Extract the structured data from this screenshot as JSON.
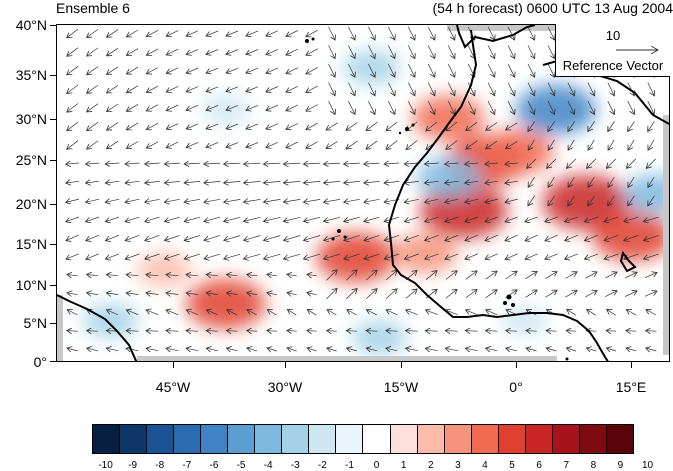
{
  "title_left": "Ensemble 6",
  "title_right": "(54 h forecast) 0600 UTC 13 Aug 2004",
  "lat_labels": [
    "40°N",
    "35°N",
    "30°N",
    "25°N",
    "20°N",
    "15°N",
    "10°N",
    "5°N",
    "0°"
  ],
  "lon_labels": [
    "45°W",
    "30°W",
    "15°W",
    "0°",
    "15°E"
  ],
  "reference_vector": {
    "magnitude": "10",
    "label": "Reference Vector"
  },
  "colorbar": {
    "labels": [
      "-10",
      "-9",
      "-8",
      "-7",
      "-6",
      "-5",
      "-4",
      "-3",
      "-2",
      "-1",
      "0",
      "1",
      "2",
      "3",
      "4",
      "5",
      "6",
      "7",
      "8",
      "9",
      "10"
    ],
    "colors": [
      "#08203f",
      "#0c3766",
      "#1a5294",
      "#2b6cb0",
      "#3f84c4",
      "#5b9ed2",
      "#7db8df",
      "#a3d1e8",
      "#cde6f2",
      "#eaf5fb",
      "#ffffff",
      "#ffffff",
      "#fde0dc",
      "#fbbcaa",
      "#f7937a",
      "#f06a52",
      "#e0402f",
      "#c92525",
      "#a8121a",
      "#7f0a12",
      "#5a0409"
    ]
  },
  "map": {
    "extent": {
      "lon_min": -60,
      "lon_max": 20,
      "lat_min": 0,
      "lat_max": 40
    },
    "anomalies": [
      {
        "lon": -4,
        "lat": 24,
        "value": 6
      },
      {
        "lon": -7,
        "lat": 18,
        "value": 7
      },
      {
        "lon": -9,
        "lat": 29,
        "value": 5
      },
      {
        "lon": 9,
        "lat": 19,
        "value": 7
      },
      {
        "lon": 15,
        "lat": 15,
        "value": 6
      },
      {
        "lon": 0,
        "lat": 25,
        "value": 5
      },
      {
        "lon": -21,
        "lat": 12.5,
        "value": 6
      },
      {
        "lon": -38,
        "lat": 7,
        "value": 6
      },
      {
        "lon": -12,
        "lat": 13,
        "value": 4
      },
      {
        "lon": -46,
        "lat": 11,
        "value": 3
      },
      {
        "lon": 5,
        "lat": 30,
        "value": -6
      },
      {
        "lon": -9,
        "lat": 22,
        "value": -4
      },
      {
        "lon": 18,
        "lat": 20,
        "value": -4
      },
      {
        "lon": -19,
        "lat": 35,
        "value": -3
      },
      {
        "lon": -38,
        "lat": 30,
        "value": -2
      },
      {
        "lon": -53,
        "lat": 5,
        "value": -3
      },
      {
        "lon": -18,
        "lat": 3,
        "value": -3
      },
      {
        "lon": 1,
        "lat": 5,
        "value": -2
      }
    ],
    "wind_field": "northeasterly trades over the Atlantic, southwesterly monsoon flow near the Gulf of Guinea, easterly flow over the Sahel"
  }
}
